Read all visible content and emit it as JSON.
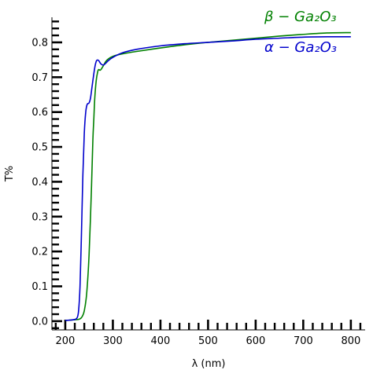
{
  "chart_data": {
    "type": "line",
    "title": "",
    "xlabel": "λ (nm)",
    "ylabel": "T%",
    "xlim": [
      172,
      830
    ],
    "ylim": [
      -0.025,
      0.872
    ],
    "xticks": [
      200,
      300,
      400,
      500,
      600,
      700,
      800
    ],
    "yticks": [
      0.0,
      0.1,
      0.2,
      0.3,
      0.4,
      0.5,
      0.6,
      0.7,
      0.8
    ],
    "xtick_labels": [
      "200",
      "300",
      "400",
      "500",
      "600",
      "700",
      "800"
    ],
    "ytick_labels": [
      "0.0",
      "0.1",
      "0.2",
      "0.3",
      "0.4",
      "0.5",
      "0.6",
      "0.7",
      "0.8"
    ],
    "x_minor_step": 20,
    "y_minor_step": 0.02,
    "grid": false,
    "legend_position": "top-right",
    "series": [
      {
        "name": "β − Ga₂O₃",
        "legend_text": "β − Ga₂O₃",
        "color": "#008000",
        "x": [
          200,
          210,
          220,
          230,
          235,
          240,
          245,
          250,
          255,
          258,
          260,
          262,
          265,
          268,
          270,
          273,
          275,
          280,
          285,
          290,
          300,
          320,
          350,
          400,
          450,
          500,
          550,
          600,
          650,
          700,
          750,
          800
        ],
        "y": [
          0.002,
          0.003,
          0.004,
          0.006,
          0.012,
          0.03,
          0.08,
          0.19,
          0.38,
          0.52,
          0.58,
          0.64,
          0.69,
          0.715,
          0.722,
          0.72,
          0.722,
          0.733,
          0.745,
          0.752,
          0.76,
          0.767,
          0.774,
          0.784,
          0.793,
          0.8,
          0.806,
          0.812,
          0.818,
          0.823,
          0.827,
          0.828
        ]
      },
      {
        "name": "α − Ga₂O₃",
        "legend_text": "α − Ga₂O₃",
        "color": "#0000cc",
        "x": [
          200,
          210,
          220,
          225,
          228,
          231,
          234,
          237,
          240,
          243,
          246,
          250,
          253,
          256,
          260,
          263,
          266,
          270,
          275,
          280,
          285,
          290,
          300,
          320,
          350,
          400,
          450,
          500,
          550,
          600,
          650,
          700,
          750,
          800
        ],
        "y": [
          0.002,
          0.003,
          0.005,
          0.01,
          0.03,
          0.1,
          0.25,
          0.42,
          0.54,
          0.6,
          0.622,
          0.626,
          0.64,
          0.67,
          0.71,
          0.735,
          0.748,
          0.748,
          0.738,
          0.735,
          0.74,
          0.747,
          0.757,
          0.77,
          0.78,
          0.79,
          0.796,
          0.8,
          0.804,
          0.809,
          0.812,
          0.815,
          0.816,
          0.816
        ]
      }
    ]
  }
}
